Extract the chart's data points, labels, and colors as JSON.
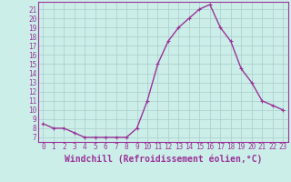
{
  "x": [
    0,
    1,
    2,
    3,
    4,
    5,
    6,
    7,
    8,
    9,
    10,
    11,
    12,
    13,
    14,
    15,
    16,
    17,
    18,
    19,
    20,
    21,
    22,
    23
  ],
  "y": [
    8.5,
    8.0,
    8.0,
    7.5,
    7.0,
    7.0,
    7.0,
    7.0,
    7.0,
    8.0,
    11.0,
    15.0,
    17.5,
    19.0,
    20.0,
    21.0,
    21.5,
    19.0,
    17.5,
    14.5,
    13.0,
    11.0,
    10.5,
    10.0
  ],
  "line_color": "#993399",
  "marker_color": "#993399",
  "bg_color": "#cceee8",
  "grid_color": "#aacccc",
  "xlabel": "Windchill (Refroidissement éolien,°C)",
  "xlim": [
    -0.5,
    23.5
  ],
  "ylim": [
    6.5,
    21.8
  ],
  "yticks": [
    7,
    8,
    9,
    10,
    11,
    12,
    13,
    14,
    15,
    16,
    17,
    18,
    19,
    20,
    21
  ],
  "xticks": [
    0,
    1,
    2,
    3,
    4,
    5,
    6,
    7,
    8,
    9,
    10,
    11,
    12,
    13,
    14,
    15,
    16,
    17,
    18,
    19,
    20,
    21,
    22,
    23
  ],
  "tick_label_fontsize": 5.5,
  "xlabel_fontsize": 7.0,
  "line_width": 1.0,
  "marker_size": 2.5
}
